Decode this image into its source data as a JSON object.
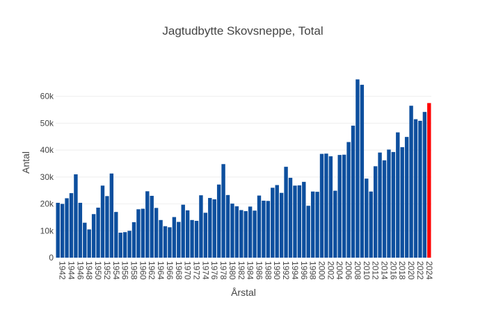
{
  "chart_data": {
    "type": "bar",
    "title": "Jagtudbytte Skovsneppe, Total",
    "xlabel": "Årstal",
    "ylabel": "Antal",
    "ylim": [
      0,
      70000
    ],
    "y_ticks": [
      0,
      10000,
      20000,
      30000,
      40000,
      50000,
      60000
    ],
    "y_tick_labels": [
      "0",
      "10k",
      "20k",
      "30k",
      "40k",
      "50k",
      "60k"
    ],
    "x_tick_labels": [
      "1942",
      "1944",
      "1946",
      "1948",
      "1950",
      "1952",
      "1954",
      "1956",
      "1958",
      "1960",
      "1962",
      "1964",
      "1966",
      "1968",
      "1970",
      "1972",
      "1974",
      "1976",
      "1978",
      "1980",
      "1982",
      "1984",
      "1986",
      "1988",
      "1990",
      "1992",
      "1994",
      "1996",
      "1998",
      "2000",
      "2002",
      "2004",
      "2006",
      "2008",
      "2010",
      "2012",
      "2014",
      "2016",
      "2018",
      "2020",
      "2022",
      "2024"
    ],
    "grid": true,
    "bar_color": "#0d4f9e",
    "highlight_color": "#ff0000",
    "highlight_category": "2024",
    "categories": [
      "1941",
      "1942",
      "1943",
      "1944",
      "1945",
      "1946",
      "1947",
      "1948",
      "1949",
      "1950",
      "1951",
      "1952",
      "1953",
      "1954",
      "1955",
      "1956",
      "1957",
      "1958",
      "1959",
      "1960",
      "1961",
      "1962",
      "1963",
      "1964",
      "1965",
      "1966",
      "1967",
      "1968",
      "1969",
      "1970",
      "1971",
      "1972",
      "1973",
      "1974",
      "1975",
      "1976",
      "1977",
      "1978",
      "1979",
      "1980",
      "1981",
      "1982",
      "1983",
      "1984",
      "1985",
      "1986",
      "1987",
      "1988",
      "1989",
      "1990",
      "1991",
      "1992",
      "1993",
      "1994",
      "1995",
      "1996",
      "1997",
      "1998",
      "1999",
      "2000",
      "2001",
      "2002",
      "2003",
      "2004",
      "2005",
      "2006",
      "2007",
      "2008",
      "2009",
      "2010",
      "2011",
      "2012",
      "2013",
      "2014",
      "2015",
      "2016",
      "2017",
      "2018",
      "2019",
      "2020",
      "2021",
      "2022",
      "2023",
      "2024"
    ],
    "values": [
      20400,
      20000,
      22100,
      24000,
      31000,
      20400,
      13000,
      10500,
      16200,
      18600,
      26800,
      22900,
      31300,
      17000,
      9300,
      9500,
      10000,
      13200,
      18000,
      18200,
      24700,
      23000,
      18500,
      14000,
      11700,
      11300,
      15100,
      13300,
      19700,
      17600,
      14000,
      13700,
      23200,
      16700,
      22200,
      21700,
      27200,
      34800,
      23300,
      20100,
      19100,
      17700,
      17300,
      19000,
      17500,
      23100,
      21200,
      21100,
      26000,
      27000,
      24100,
      33800,
      29700,
      26800,
      26900,
      28200,
      19300,
      24600,
      24500,
      38600,
      38700,
      37700,
      24900,
      38200,
      38300,
      43000,
      49100,
      66300,
      64300,
      29400,
      24600,
      34000,
      39100,
      36200,
      40200,
      39300,
      46600,
      41100,
      44900,
      56500,
      51500,
      50900,
      54200,
      57500
    ]
  }
}
